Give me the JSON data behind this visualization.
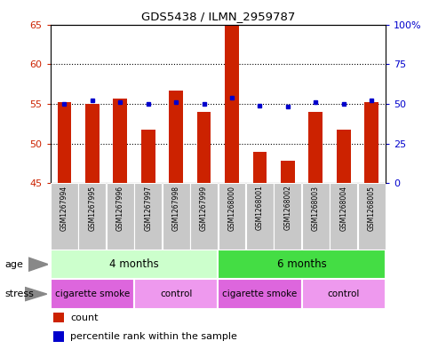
{
  "title": "GDS5438 / ILMN_2959787",
  "samples": [
    "GSM1267994",
    "GSM1267995",
    "GSM1267996",
    "GSM1267997",
    "GSM1267998",
    "GSM1267999",
    "GSM1268000",
    "GSM1268001",
    "GSM1268002",
    "GSM1268003",
    "GSM1268004",
    "GSM1268005"
  ],
  "counts": [
    55.2,
    55.0,
    55.7,
    51.7,
    56.7,
    54.0,
    65.0,
    49.0,
    47.8,
    54.0,
    51.7,
    55.2
  ],
  "percentiles": [
    50,
    52,
    51,
    50,
    51,
    50,
    54,
    49,
    48,
    51,
    50,
    52
  ],
  "ylim_left": [
    45,
    65
  ],
  "ylim_right": [
    0,
    100
  ],
  "yticks_left": [
    45,
    50,
    55,
    60,
    65
  ],
  "yticks_right": [
    0,
    25,
    50,
    75,
    100
  ],
  "ytick_labels_right": [
    "0",
    "25",
    "50",
    "75",
    "100%"
  ],
  "bar_color": "#cc2200",
  "dot_color": "#0000cc",
  "tick_bg": "#c8c8c8",
  "age_groups": [
    {
      "label": "4 months",
      "start": 0,
      "end": 6,
      "color": "#ccffcc"
    },
    {
      "label": "6 months",
      "start": 6,
      "end": 12,
      "color": "#44dd44"
    }
  ],
  "stress_groups": [
    {
      "label": "cigarette smoke",
      "start": 0,
      "end": 3,
      "color": "#dd66dd"
    },
    {
      "label": "control",
      "start": 3,
      "end": 6,
      "color": "#ee99ee"
    },
    {
      "label": "cigarette smoke",
      "start": 6,
      "end": 9,
      "color": "#dd66dd"
    },
    {
      "label": "control",
      "start": 9,
      "end": 12,
      "color": "#ee99ee"
    }
  ],
  "hgrid_vals": [
    50,
    55,
    60
  ],
  "font_color_left": "#cc2200",
  "font_color_right": "#0000cc"
}
